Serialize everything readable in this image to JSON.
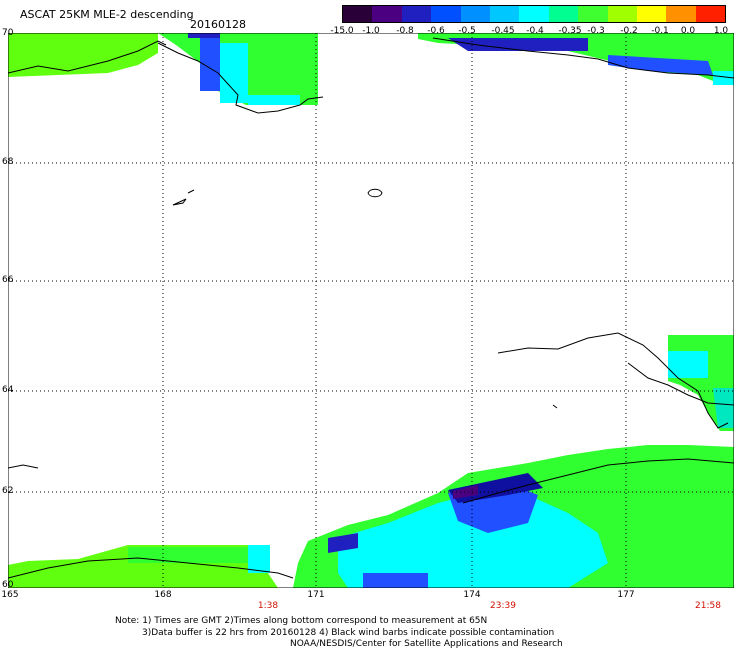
{
  "header": {
    "title": "ASCAT 25KM MLE-2 descending",
    "date": "20160128"
  },
  "colorbar": {
    "ticks": [
      "-15.0",
      "-1.0",
      "-0.8",
      "-0.6",
      "-0.5",
      "-0.45",
      "-0.4",
      "-0.35",
      "-0.3",
      "-0.2",
      "-0.1",
      "0.0",
      "1.0"
    ],
    "colors": [
      "#2a0038",
      "#4b0082",
      "#2020c0",
      "#0050ff",
      "#0090ff",
      "#00c8ff",
      "#00ffff",
      "#00ff90",
      "#40ff30",
      "#a0ff00",
      "#ffff00",
      "#ff9000",
      "#ff2000"
    ]
  },
  "axes": {
    "lat_labels": [
      "70",
      "68",
      "66",
      "64",
      "62",
      "60"
    ],
    "lon_labels": [
      "165",
      "168",
      "171",
      "174",
      "177"
    ]
  },
  "pass_times": [
    "1:38",
    "23:39",
    "21:58"
  ],
  "notes": {
    "line1": "Note: 1) Times are GMT 2)Times along bottom correspond to measurement at 65N",
    "line2": "3)Data buffer is 22 hrs from 20160128 4) Black wind barbs indicate possible contamination",
    "line3": "NOAA/NESDIS/Center for Satellite Applications and Research"
  }
}
